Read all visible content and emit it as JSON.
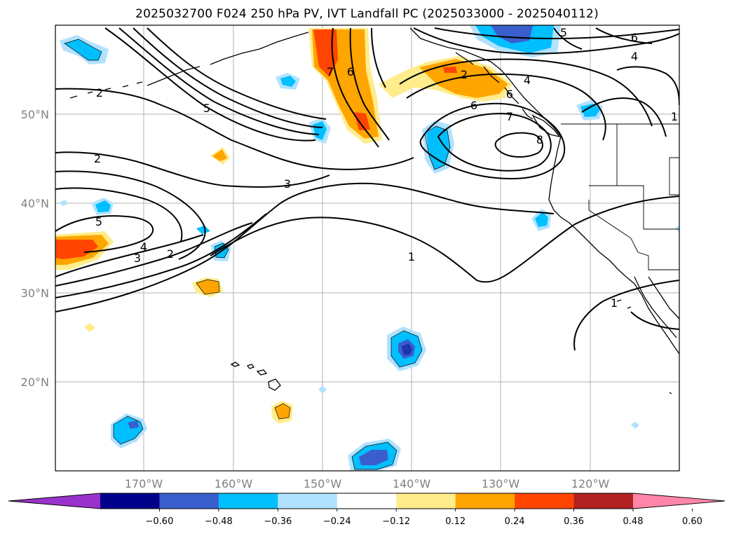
{
  "title": "2025032700 F024 250 hPa PV, IVT Landfall PC (2025033000 - 2025040112)",
  "map": {
    "lat_labels": [
      "50°N",
      "40°N",
      "30°N",
      "20°N"
    ],
    "lon_labels": [
      "170°W",
      "160°W",
      "150°W",
      "140°W",
      "130°W",
      "120°W"
    ],
    "contour_labels": [
      "2",
      "5",
      "2",
      "3",
      "5",
      "4",
      "3",
      "2",
      "7",
      "6",
      "2",
      "6",
      "4",
      "6",
      "7",
      "8",
      "5",
      "6",
      "4",
      "1",
      "1",
      "1"
    ]
  },
  "colorbar": {
    "ticks": [
      "−0.60",
      "−0.48",
      "−0.36",
      "−0.24",
      "−0.12",
      "0.12",
      "0.24",
      "0.36",
      "0.48",
      "0.60"
    ],
    "colors": [
      "#9932cc",
      "#00008b",
      "#3a5fcd",
      "#00bfff",
      "#b0e2ff",
      "#ffffff",
      "#ffec8b",
      "#ffa500",
      "#ff4500",
      "#b22222",
      "#ff86a8"
    ]
  },
  "colors": {
    "neg_light": "#b0e2ff",
    "neg_mid": "#00bfff",
    "neg_dark": "#3a5fcd",
    "pos_light": "#ffec8b",
    "pos_mid": "#ffa500",
    "pos_dark": "#ff4500"
  }
}
